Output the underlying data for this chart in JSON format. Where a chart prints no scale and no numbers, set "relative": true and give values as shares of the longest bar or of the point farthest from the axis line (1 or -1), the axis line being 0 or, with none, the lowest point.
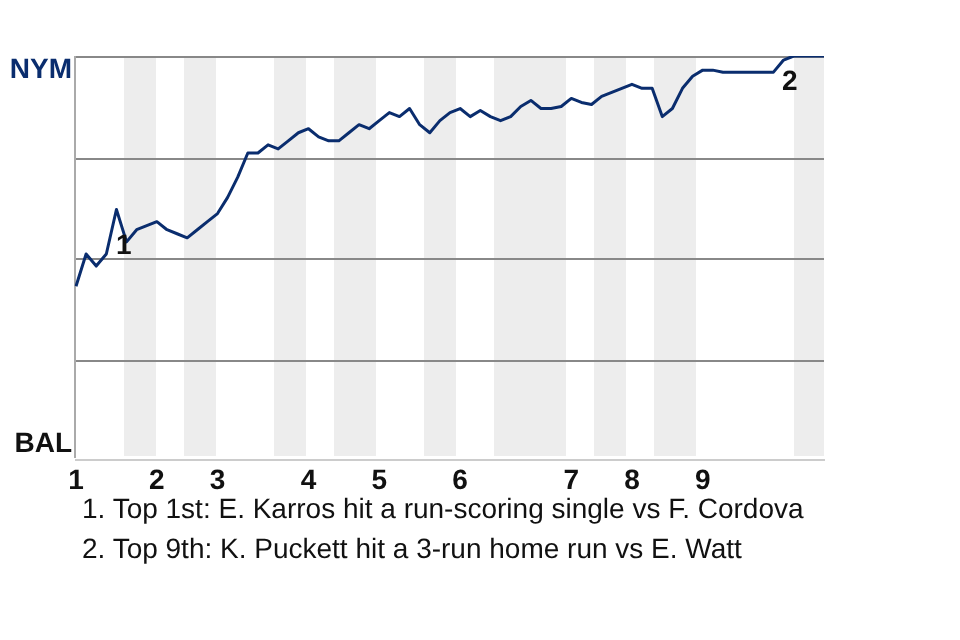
{
  "chart_data": {
    "type": "line",
    "relative": true,
    "categories": [
      "1",
      null,
      null,
      null,
      null,
      null,
      null,
      null,
      "2",
      null,
      null,
      null,
      null,
      null,
      "3",
      null,
      null,
      null,
      null,
      null,
      null,
      null,
      null,
      "4",
      null,
      null,
      null,
      null,
      null,
      null,
      "5",
      null,
      null,
      null,
      null,
      null,
      null,
      null,
      "6",
      null,
      null,
      null,
      null,
      null,
      null,
      null,
      null,
      null,
      null,
      "7",
      null,
      null,
      null,
      null,
      null,
      "8",
      null,
      null,
      null,
      null,
      null,
      null,
      "9",
      null,
      null,
      null,
      null,
      null,
      null,
      null,
      null,
      null,
      null,
      null,
      null
    ],
    "series": [
      {
        "color": "#0a2d6e",
        "values": [
          0.43,
          0.51,
          0.48,
          0.51,
          0.62,
          0.54,
          0.57,
          0.58,
          0.59,
          0.57,
          0.56,
          0.55,
          0.57,
          0.59,
          0.61,
          0.65,
          0.7,
          0.76,
          0.76,
          0.78,
          0.77,
          0.79,
          0.81,
          0.82,
          0.8,
          0.79,
          0.79,
          0.81,
          0.83,
          0.82,
          0.84,
          0.86,
          0.85,
          0.87,
          0.83,
          0.81,
          0.84,
          0.86,
          0.87,
          0.85,
          0.865,
          0.85,
          0.84,
          0.85,
          0.875,
          0.89,
          0.87,
          0.87,
          0.875,
          0.895,
          0.885,
          0.88,
          0.9,
          0.91,
          0.92,
          0.93,
          0.92,
          0.92,
          0.85,
          0.87,
          0.92,
          0.95,
          0.965,
          0.965,
          0.96,
          0.96,
          0.96,
          0.96,
          0.96,
          0.96,
          0.99,
          1,
          1,
          1,
          1
        ]
      }
    ],
    "ref_lines": [
      {
        "axis": "y",
        "value": 0.25,
        "color": "#888888"
      },
      {
        "axis": "y",
        "value": 0.5,
        "color": "#888888"
      },
      {
        "axis": "y",
        "value": 0.75,
        "color": "#888888"
      },
      {
        "axis": "y",
        "value": 1,
        "color": "#888888"
      }
    ],
    "annotations": [
      "NYM",
      "BAL",
      "1",
      "2",
      "1. Top 1st: E. Karros hit a run-scoring single vs F. Cordova",
      "2. Top 9th: K. Puckett hit a 3-run home run vs E. Watt"
    ],
    "marker": "none"
  }
}
